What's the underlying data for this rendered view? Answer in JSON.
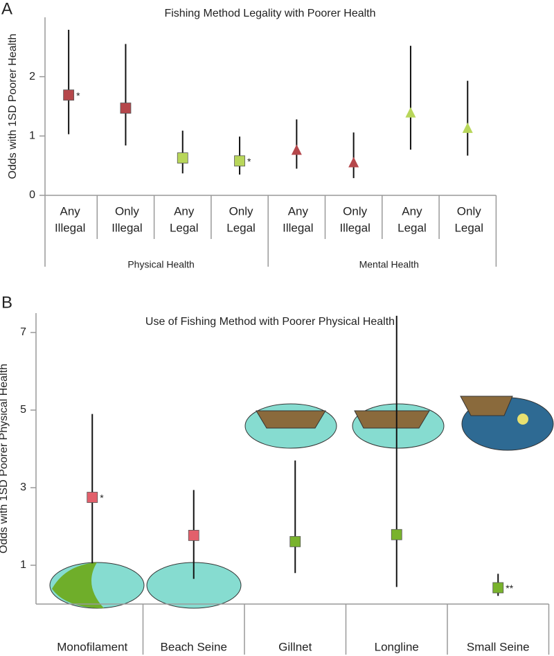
{
  "chart_data": [
    {
      "type": "errorbar",
      "panel_label": "A",
      "title": "Fishing Method Legality with Poorer Health",
      "ylabel": "Odds with 1SD Poorer Health",
      "categories": [
        [
          "Any",
          "Illegal"
        ],
        [
          "Only",
          "Illegal"
        ],
        [
          "Any",
          "Legal"
        ],
        [
          "Only",
          "Legal"
        ],
        [
          "Any",
          "Illegal"
        ],
        [
          "Only",
          "Illegal"
        ],
        [
          "Any",
          "Legal"
        ],
        [
          "Only",
          "Legal"
        ]
      ],
      "groups": [
        "Physical Health",
        "Mental Health"
      ],
      "values": [
        1.69,
        1.47,
        0.63,
        0.58,
        0.77,
        0.56,
        1.4,
        1.14
      ],
      "ci_low": [
        1.03,
        0.84,
        0.37,
        0.35,
        0.45,
        0.29,
        0.77,
        0.67
      ],
      "ci_high": [
        2.79,
        2.55,
        1.09,
        0.99,
        1.28,
        1.06,
        2.52,
        1.93
      ],
      "colors": [
        "#b5474b",
        "#b5474b",
        "#b8d65a",
        "#b8d65a",
        "#b5474b",
        "#b5474b",
        "#b8d65a",
        "#b8d65a"
      ],
      "markers": [
        "square",
        "square",
        "square",
        "square",
        "triangle",
        "triangle",
        "triangle",
        "triangle"
      ],
      "annotations": [
        {
          "index": 0,
          "text": "*"
        },
        {
          "index": 3,
          "text": "*"
        }
      ],
      "ylim": [
        0,
        3
      ],
      "yticks": [
        0,
        1,
        2
      ]
    },
    {
      "type": "errorbar",
      "panel_label": "B",
      "title": "Use of Fishing Method with Poorer Physical Health",
      "ylabel": "Odds with 1SD Poorer Physical Health",
      "categories": [
        "Monofilament",
        "Beach Seine",
        "Gillnet",
        "Longline",
        "Small Seine"
      ],
      "values": [
        2.75,
        1.77,
        1.61,
        1.79,
        0.42
      ],
      "ci_low": [
        1.05,
        0.65,
        0.8,
        0.44,
        0.21
      ],
      "ci_high": [
        4.9,
        2.94,
        3.7,
        7.43,
        0.78
      ],
      "colors": [
        "#e2606b",
        "#e2606b",
        "#79b32d",
        "#79b32d",
        "#79b32d"
      ],
      "markers": [
        "square",
        "square",
        "square",
        "square",
        "square"
      ],
      "annotations": [
        {
          "index": 0,
          "text": "*"
        },
        {
          "index": 4,
          "text": "**"
        }
      ],
      "ylim": [
        0,
        7.5
      ],
      "yticks": [
        1,
        3,
        5,
        7
      ]
    }
  ]
}
